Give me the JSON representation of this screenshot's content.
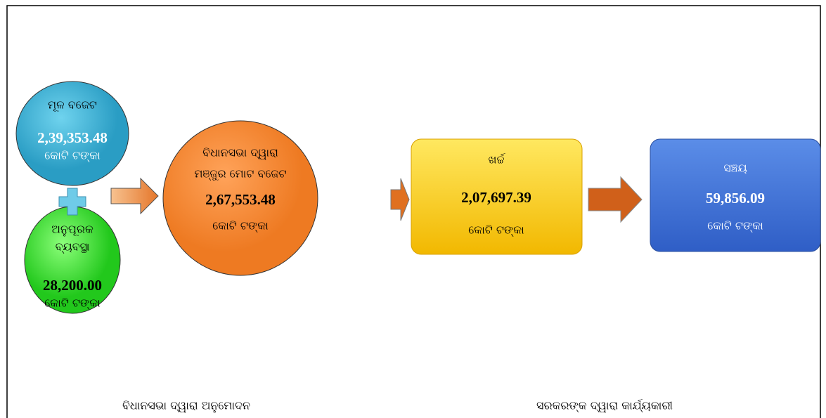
{
  "nodes": [
    {
      "label": [
        "ମୂଳ ବଜେଟ"
      ],
      "value": "2,39,353.48",
      "unit": "କୋଟି ଟଙ୍କା"
    },
    {
      "label": [
        "ଅନୁପୂରକ",
        "ବ୍ୟବସ୍ଥା"
      ],
      "value": "28,200.00",
      "unit": "କୋଟି ଟଙ୍କା"
    },
    {
      "label": [
        "ବିଧାନସଭା ଦ୍ୱାରା",
        "ମଞ୍ଜୁର ମୋଟ ବଜେଟ"
      ],
      "value": "2,67,553.48",
      "unit": "କୋଟି ଟଙ୍କା"
    },
    {
      "label": [
        "ଖର୍ଚ୍ଚ"
      ],
      "value": "2,07,697.39",
      "unit": "କୋଟି ଟଙ୍କା"
    },
    {
      "label": [
        "ସଞ୍ଚୟ"
      ],
      "value": "59,856.09",
      "unit": "କୋଟି ଟଙ୍କା"
    }
  ],
  "footer": [
    "ବିଧାନସଭା ଦ୍ୱାରା ଅନୁମୋଦନ",
    "ସରକରଙ୍କ ଦ୍ୱାରା କାର୍ଯ୍ୟକାରୀ"
  ]
}
